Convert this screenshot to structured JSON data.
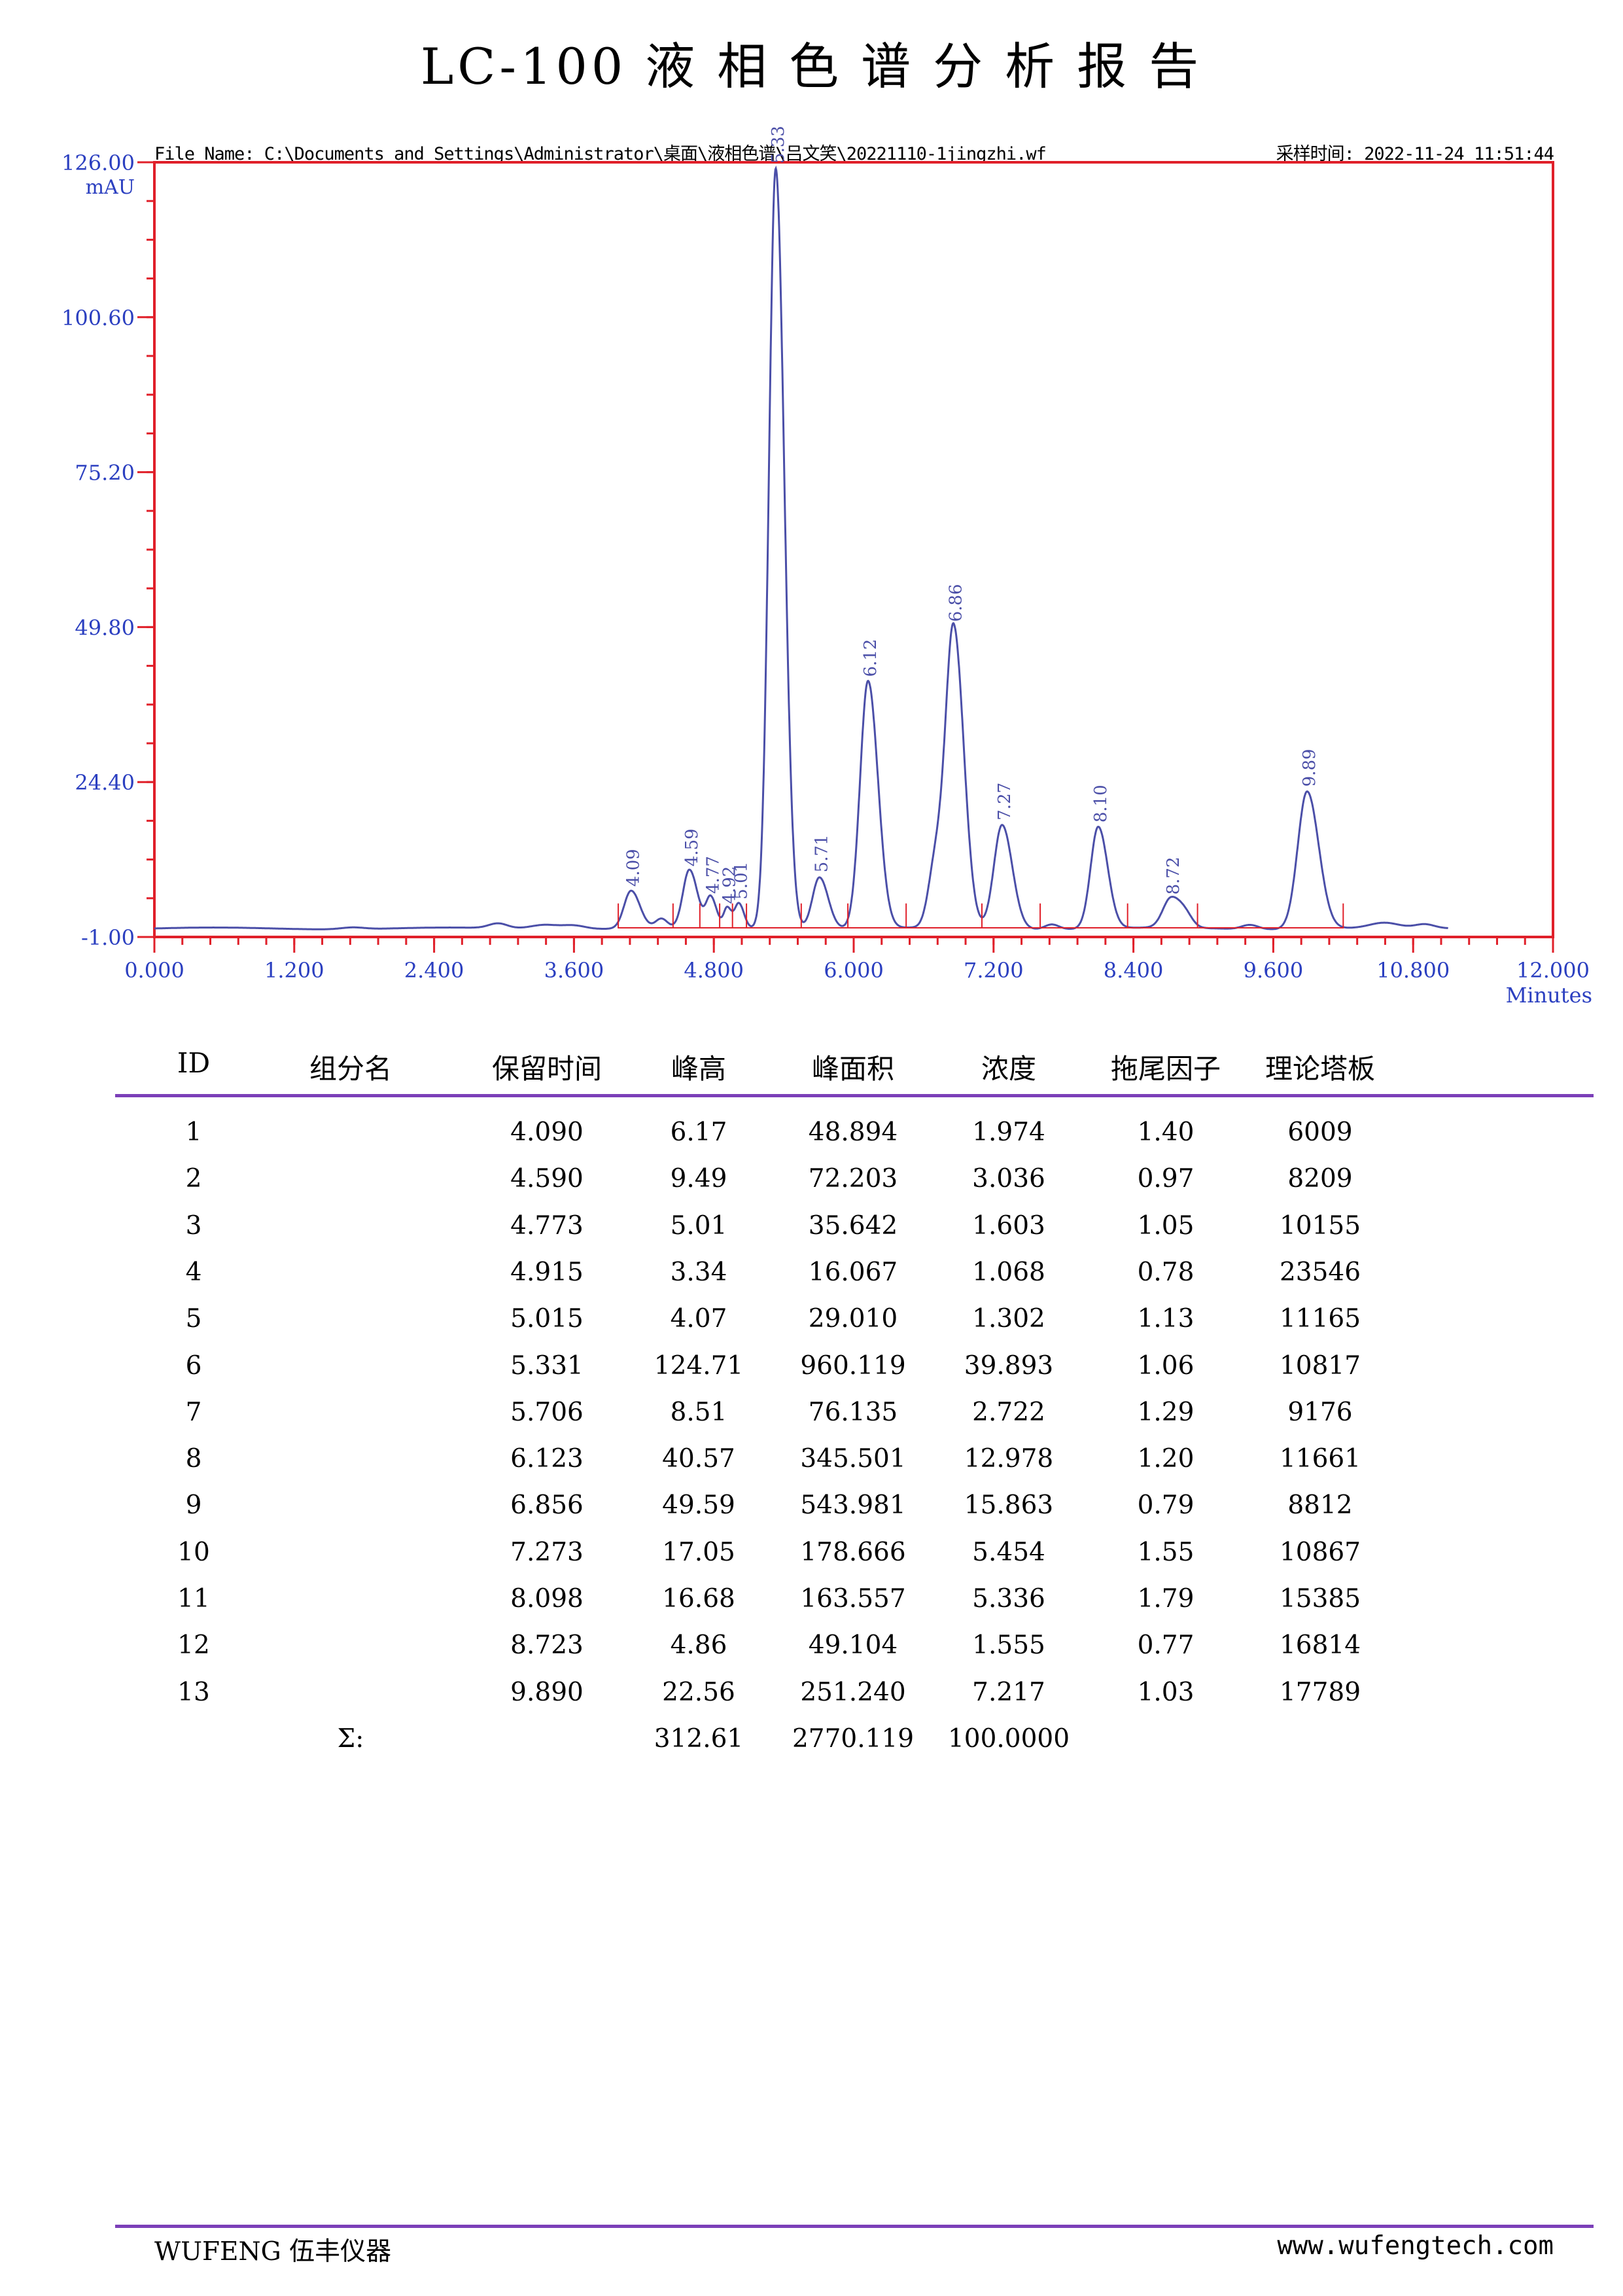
{
  "report": {
    "title_chars": [
      "LC-100",
      "液",
      "相",
      "色",
      "谱",
      "分",
      "析",
      "报",
      "告"
    ],
    "file_name": "File Name: C:\\Documents and Settings\\Administrator\\桌面\\液相色谱\\吕文笑\\20221110-1jingzhi.wf",
    "sample_time": "采样时间: 2022-11-24 11:51:44"
  },
  "chart_data": {
    "type": "line",
    "ylim": [
      -1.0,
      126.0
    ],
    "xlim": [
      0.0,
      12.0
    ],
    "yticks": [
      "-1.00",
      "24.40",
      "49.80",
      "75.20",
      "100.60",
      "126.00"
    ],
    "ytick_values": [
      -1.0,
      24.4,
      49.8,
      75.2,
      100.6,
      126.0
    ],
    "xticks": [
      "0.000",
      "1.200",
      "2.400",
      "3.600",
      "4.800",
      "6.000",
      "7.200",
      "8.400",
      "9.600",
      "10.800",
      "12.000"
    ],
    "xtick_values": [
      0.0,
      1.2,
      2.4,
      3.6,
      4.8,
      6.0,
      7.2,
      8.4,
      9.6,
      10.8,
      12.0
    ],
    "ylabel": "mAU",
    "xlabel": "Minutes",
    "peaks": [
      {
        "label": "4.09",
        "rt": 4.09,
        "height": 6.17,
        "width": 0.06
      },
      {
        "label": "4.59",
        "rt": 4.59,
        "height": 9.49,
        "width": 0.055
      },
      {
        "label": "4.77",
        "rt": 4.773,
        "height": 5.01,
        "width": 0.04
      },
      {
        "label": "4.92",
        "rt": 4.915,
        "height": 3.34,
        "width": 0.03
      },
      {
        "label": "5.01",
        "rt": 5.015,
        "height": 4.07,
        "width": 0.035
      },
      {
        "label": "5.33",
        "rt": 5.331,
        "height": 124.71,
        "width": 0.058
      },
      {
        "label": "5.71",
        "rt": 5.706,
        "height": 8.51,
        "width": 0.06
      },
      {
        "label": "6.12",
        "rt": 6.123,
        "height": 40.57,
        "width": 0.068
      },
      {
        "label": "6.86",
        "rt": 6.856,
        "height": 49.59,
        "width": 0.07
      },
      {
        "label": "7.27",
        "rt": 7.273,
        "height": 17.05,
        "width": 0.07
      },
      {
        "label": "8.10",
        "rt": 8.098,
        "height": 16.68,
        "width": 0.065
      },
      {
        "label": "8.72",
        "rt": 8.723,
        "height": 4.86,
        "width": 0.07
      },
      {
        "label": "9.89",
        "rt": 9.89,
        "height": 22.56,
        "width": 0.08
      }
    ]
  },
  "table": {
    "headers": [
      "ID",
      "组分名",
      "保留时间",
      "峰高",
      "峰面积",
      "浓度",
      "拖尾因子",
      "理论塔板"
    ],
    "rows": [
      [
        "1",
        "",
        "4.090",
        "6.17",
        "48.894",
        "1.974",
        "1.40",
        "6009"
      ],
      [
        "2",
        "",
        "4.590",
        "9.49",
        "72.203",
        "3.036",
        "0.97",
        "8209"
      ],
      [
        "3",
        "",
        "4.773",
        "5.01",
        "35.642",
        "1.603",
        "1.05",
        "10155"
      ],
      [
        "4",
        "",
        "4.915",
        "3.34",
        "16.067",
        "1.068",
        "0.78",
        "23546"
      ],
      [
        "5",
        "",
        "5.015",
        "4.07",
        "29.010",
        "1.302",
        "1.13",
        "11165"
      ],
      [
        "6",
        "",
        "5.331",
        "124.71",
        "960.119",
        "39.893",
        "1.06",
        "10817"
      ],
      [
        "7",
        "",
        "5.706",
        "8.51",
        "76.135",
        "2.722",
        "1.29",
        "9176"
      ],
      [
        "8",
        "",
        "6.123",
        "40.57",
        "345.501",
        "12.978",
        "1.20",
        "11661"
      ],
      [
        "9",
        "",
        "6.856",
        "49.59",
        "543.981",
        "15.863",
        "0.79",
        "8812"
      ],
      [
        "10",
        "",
        "7.273",
        "17.05",
        "178.666",
        "5.454",
        "1.55",
        "10867"
      ],
      [
        "11",
        "",
        "8.098",
        "16.68",
        "163.557",
        "5.336",
        "1.79",
        "15385"
      ],
      [
        "12",
        "",
        "8.723",
        "4.86",
        "49.104",
        "1.555",
        "0.77",
        "16814"
      ],
      [
        "13",
        "",
        "9.890",
        "22.56",
        "251.240",
        "7.217",
        "1.03",
        "17789"
      ]
    ],
    "sum_label": "Σ:",
    "sum_height": "312.61",
    "sum_area": "2770.119",
    "sum_conc": "100.0000"
  },
  "footer": {
    "brand": "WUFENG 伍丰仪器",
    "website": "www.wufengtech.com"
  },
  "colors": {
    "frame": "#e0202a",
    "axis_text": "#2b3fc0",
    "trace": "#4b4fa8",
    "rule": "#7b3fb8"
  }
}
